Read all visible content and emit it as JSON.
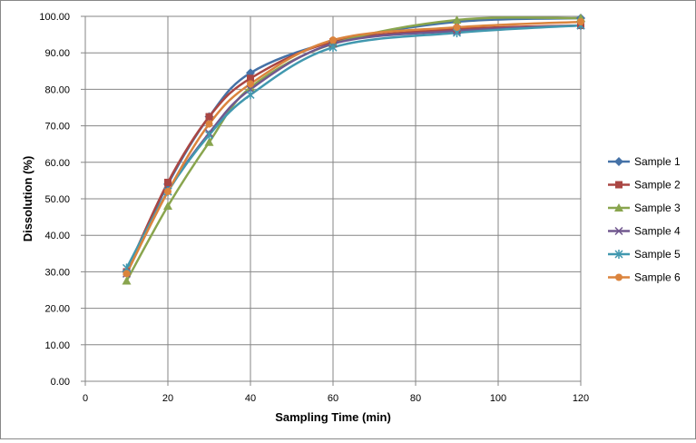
{
  "chart_data": {
    "type": "line",
    "xlabel": "Sampling Time (min)",
    "ylabel": "Dissolution  (%)",
    "xlim": [
      0,
      120
    ],
    "ylim": [
      0,
      100
    ],
    "x_ticks": [
      0,
      20,
      40,
      60,
      80,
      100,
      120
    ],
    "x_tick_labels": [
      "0",
      "20",
      "40",
      "60",
      "80",
      "100",
      "120"
    ],
    "y_ticks": [
      0,
      10,
      20,
      30,
      40,
      50,
      60,
      70,
      80,
      90,
      100
    ],
    "y_tick_labels": [
      "0.00",
      "10.00",
      "20.00",
      "30.00",
      "40.00",
      "50.00",
      "60.00",
      "70.00",
      "80.00",
      "90.00",
      "100.00"
    ],
    "grid": true,
    "smooth": true,
    "legend_position": "right",
    "x": [
      10,
      20,
      30,
      40,
      60,
      90,
      120
    ],
    "series": [
      {
        "name": "Sample 1",
        "color": "#4572A7",
        "marker": "diamond",
        "values": [
          30.0,
          54.0,
          72.5,
          84.5,
          93.0,
          98.5,
          99.5
        ]
      },
      {
        "name": "Sample 2",
        "color": "#AA4643",
        "marker": "square",
        "values": [
          30.0,
          54.5,
          72.5,
          83.0,
          93.0,
          96.5,
          97.5
        ]
      },
      {
        "name": "Sample 3",
        "color": "#89A54E",
        "marker": "triangle",
        "values": [
          27.5,
          48.0,
          65.5,
          80.5,
          92.5,
          99.0,
          99.5
        ]
      },
      {
        "name": "Sample 4",
        "color": "#71588F",
        "marker": "x",
        "values": [
          29.5,
          52.0,
          68.0,
          80.0,
          92.5,
          96.0,
          97.5
        ]
      },
      {
        "name": "Sample 5",
        "color": "#4198AF",
        "marker": "star",
        "values": [
          31.0,
          52.0,
          67.5,
          78.5,
          91.5,
          95.5,
          97.5
        ]
      },
      {
        "name": "Sample 6",
        "color": "#DB843D",
        "marker": "circle",
        "values": [
          29.5,
          52.0,
          70.5,
          81.5,
          93.5,
          97.0,
          98.5
        ]
      }
    ]
  }
}
